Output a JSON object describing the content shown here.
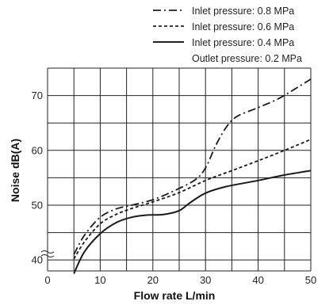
{
  "chart_data": {
    "type": "line",
    "title": "",
    "xlabel": "Flow rate L/min",
    "ylabel": "Noise dB(A)",
    "xlim": [
      0,
      50
    ],
    "ylim": [
      38,
      75
    ],
    "x_ticks": [
      0,
      10,
      20,
      30,
      40,
      50
    ],
    "y_ticks": [
      40,
      50,
      60,
      70
    ],
    "grid": true,
    "legend_position": "top-right",
    "note": "Outlet pressure: 0.2 MPa",
    "series": [
      {
        "name": "Inlet pressure: 0.8 MPa",
        "style": "dash-dot",
        "x": [
          5,
          7,
          10,
          13,
          16,
          20,
          24,
          28,
          30,
          32,
          34,
          36,
          40,
          44,
          48,
          50
        ],
        "y": [
          41,
          44.5,
          47.8,
          49.3,
          50,
          51,
          52.6,
          54.6,
          56.8,
          61,
          64.3,
          66.2,
          67.8,
          69.5,
          71.8,
          73
        ]
      },
      {
        "name": "Inlet pressure: 0.6 MPa",
        "style": "dashed",
        "x": [
          5,
          7,
          10,
          13,
          16,
          20,
          25,
          30,
          35,
          40,
          45,
          50
        ],
        "y": [
          40.2,
          43.3,
          46.6,
          48.3,
          49.4,
          50.6,
          52.3,
          54.5,
          56.3,
          58.1,
          60,
          62
        ]
      },
      {
        "name": "Inlet pressure: 0.4 MPa",
        "style": "solid",
        "x": [
          5,
          7,
          10,
          13,
          16,
          19,
          22,
          25,
          27,
          30,
          34,
          40,
          45,
          50
        ],
        "y": [
          37.5,
          41.5,
          44.8,
          46.8,
          47.8,
          48.2,
          48.3,
          49,
          50.4,
          52.2,
          53.4,
          54.5,
          55.5,
          56.3
        ]
      }
    ]
  }
}
